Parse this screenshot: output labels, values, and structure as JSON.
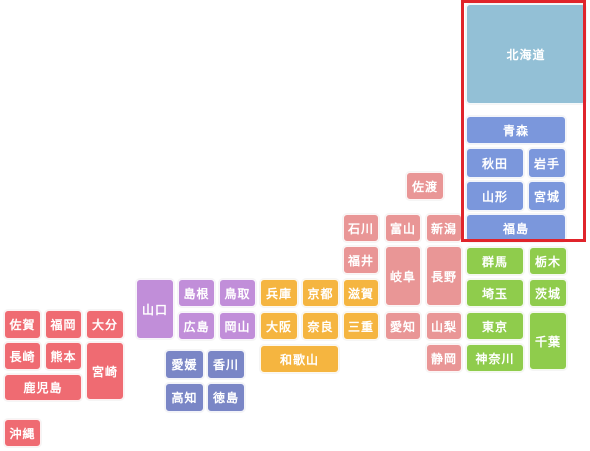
{
  "prefectures": [
    {
      "id": "hokkaido",
      "label": "北海道",
      "region": "hokkaido"
    },
    {
      "id": "aomori",
      "label": "青森",
      "region": "tohoku"
    },
    {
      "id": "akita",
      "label": "秋田",
      "region": "tohoku"
    },
    {
      "id": "iwate",
      "label": "岩手",
      "region": "tohoku"
    },
    {
      "id": "yamagata",
      "label": "山形",
      "region": "tohoku"
    },
    {
      "id": "miyagi",
      "label": "宮城",
      "region": "tohoku"
    },
    {
      "id": "fukushima",
      "label": "福島",
      "region": "tohoku"
    },
    {
      "id": "sado",
      "label": "佐渡",
      "region": "chubu"
    },
    {
      "id": "ishikawa",
      "label": "石川",
      "region": "chubu"
    },
    {
      "id": "toyama",
      "label": "富山",
      "region": "chubu"
    },
    {
      "id": "niigata",
      "label": "新潟",
      "region": "chubu"
    },
    {
      "id": "fukui",
      "label": "福井",
      "region": "chubu"
    },
    {
      "id": "gifu",
      "label": "岐阜",
      "region": "chubu"
    },
    {
      "id": "nagano",
      "label": "長野",
      "region": "chubu"
    },
    {
      "id": "aichi",
      "label": "愛知",
      "region": "chubu"
    },
    {
      "id": "yamanashi",
      "label": "山梨",
      "region": "chubu"
    },
    {
      "id": "shizuoka",
      "label": "静岡",
      "region": "chubu"
    },
    {
      "id": "gunma",
      "label": "群馬",
      "region": "kanto"
    },
    {
      "id": "tochigi",
      "label": "栃木",
      "region": "kanto"
    },
    {
      "id": "saitama",
      "label": "埼玉",
      "region": "kanto"
    },
    {
      "id": "ibaraki",
      "label": "茨城",
      "region": "kanto"
    },
    {
      "id": "tokyo",
      "label": "東京",
      "region": "kanto"
    },
    {
      "id": "chiba",
      "label": "千葉",
      "region": "kanto"
    },
    {
      "id": "kanagawa",
      "label": "神奈川",
      "region": "kanto"
    },
    {
      "id": "shiga",
      "label": "滋賀",
      "region": "kinki"
    },
    {
      "id": "hyogo",
      "label": "兵庫",
      "region": "kinki"
    },
    {
      "id": "kyoto",
      "label": "京都",
      "region": "kinki"
    },
    {
      "id": "osaka",
      "label": "大阪",
      "region": "kinki"
    },
    {
      "id": "nara",
      "label": "奈良",
      "region": "kinki"
    },
    {
      "id": "mie",
      "label": "三重",
      "region": "kinki"
    },
    {
      "id": "wakayama",
      "label": "和歌山",
      "region": "kinki"
    },
    {
      "id": "yamaguchi",
      "label": "山口",
      "region": "chugoku"
    },
    {
      "id": "shimane",
      "label": "島根",
      "region": "chugoku"
    },
    {
      "id": "tottori",
      "label": "鳥取",
      "region": "chugoku"
    },
    {
      "id": "hiroshima",
      "label": "広島",
      "region": "chugoku"
    },
    {
      "id": "okayama",
      "label": "岡山",
      "region": "chugoku"
    },
    {
      "id": "ehime",
      "label": "愛媛",
      "region": "shikoku"
    },
    {
      "id": "kagawa",
      "label": "香川",
      "region": "shikoku"
    },
    {
      "id": "kochi",
      "label": "高知",
      "region": "shikoku"
    },
    {
      "id": "tokushima",
      "label": "徳島",
      "region": "shikoku"
    },
    {
      "id": "saga",
      "label": "佐賀",
      "region": "kyushu"
    },
    {
      "id": "fukuoka",
      "label": "福岡",
      "region": "kyushu"
    },
    {
      "id": "oita",
      "label": "大分",
      "region": "kyushu"
    },
    {
      "id": "nagasaki",
      "label": "長崎",
      "region": "kyushu"
    },
    {
      "id": "kumamoto",
      "label": "熊本",
      "region": "kyushu"
    },
    {
      "id": "miyazaki",
      "label": "宮崎",
      "region": "kyushu"
    },
    {
      "id": "kagoshima",
      "label": "鹿児島",
      "region": "kyushu"
    },
    {
      "id": "okinawa",
      "label": "沖縄",
      "region": "kyushu"
    }
  ],
  "colors": {
    "hokkaido": "#93c0d6",
    "tohoku": "#7b97dc",
    "kanto": "#8fcc4c",
    "chubu": "#e99696",
    "kinki": "#f5b540",
    "chugoku": "#c18ed9",
    "shikoku": "#7a86c6",
    "kyushu": "#ef6b72",
    "highlight": "#e0242b"
  }
}
